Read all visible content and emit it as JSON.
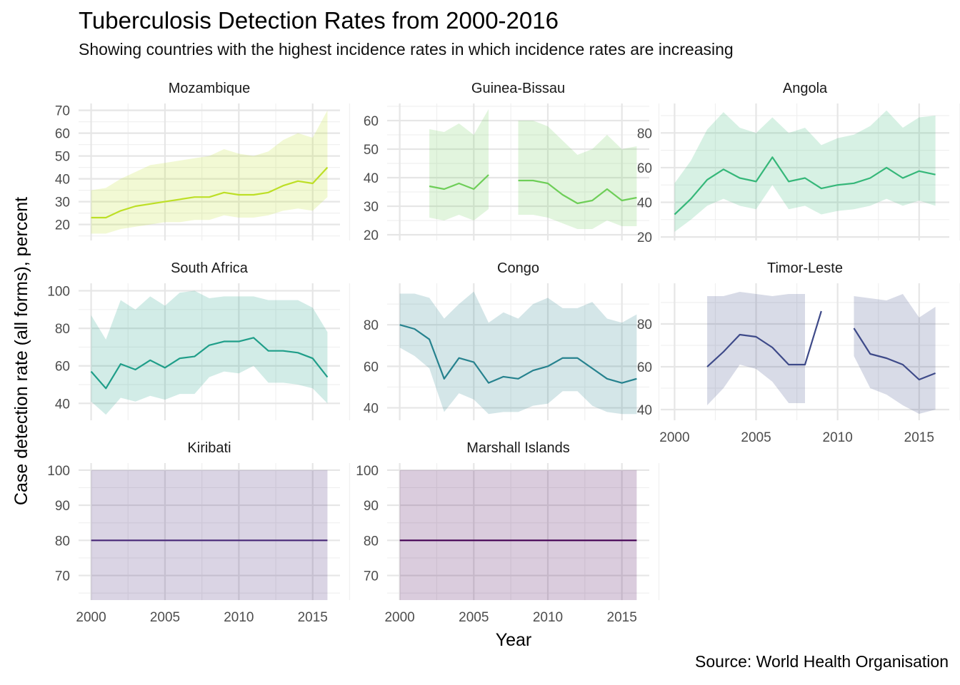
{
  "title": "Tuberculosis Detection Rates from 2000-2016",
  "subtitle": "Showing countries with the highest incidence rates in which incidence rates are increasing",
  "caption": "Source: World Health Organisation",
  "chart_data": {
    "type": "line",
    "title": "Tuberculosis Detection Rates from 2000-2016",
    "xlabel": "Year",
    "ylabel": "Case detection rate (all forms), percent",
    "x_ticks": [
      2000,
      2005,
      2010,
      2015
    ],
    "grid": true,
    "facets": [
      {
        "name": "Mozambique",
        "color": "#bddf26",
        "ylim": [
          13,
          73
        ],
        "y_ticks": [
          20,
          30,
          40,
          50,
          60,
          70
        ],
        "x": [
          2000,
          2001,
          2002,
          2003,
          2004,
          2005,
          2006,
          2007,
          2008,
          2009,
          2010,
          2011,
          2012,
          2013,
          2014,
          2015,
          2016
        ],
        "values": [
          23,
          23,
          26,
          28,
          29,
          30,
          31,
          32,
          32,
          34,
          33,
          33,
          34,
          37,
          39,
          38,
          45
        ],
        "lower": [
          16,
          16,
          18,
          19,
          20,
          21,
          21,
          22,
          22,
          24,
          23,
          23,
          24,
          26,
          27,
          26,
          32
        ],
        "upper": [
          35,
          36,
          40,
          43,
          46,
          47,
          48,
          49,
          50,
          53,
          51,
          50,
          52,
          57,
          60,
          58,
          70
        ]
      },
      {
        "name": "Guinea-Bissau",
        "color": "#6ece58",
        "ylim": [
          18,
          66
        ],
        "y_ticks": [
          20,
          30,
          40,
          50,
          60
        ],
        "x": [
          2000,
          2001,
          2002,
          2003,
          2004,
          2005,
          2006,
          2007,
          2008,
          2009,
          2010,
          2011,
          2012,
          2013,
          2014,
          2015,
          2016
        ],
        "values": [
          null,
          null,
          37,
          36,
          38,
          36,
          41,
          null,
          39,
          39,
          38,
          34,
          31,
          32,
          36,
          32,
          33
        ],
        "lower": [
          null,
          null,
          26,
          25,
          27,
          25,
          29,
          null,
          27,
          27,
          26,
          24,
          22,
          22,
          25,
          23,
          23
        ],
        "upper": [
          null,
          null,
          57,
          56,
          59,
          55,
          64,
          null,
          60,
          60,
          58,
          53,
          48,
          50,
          55,
          50,
          51
        ]
      },
      {
        "name": "Angola",
        "color": "#35b779",
        "ylim": [
          18,
          97
        ],
        "y_ticks": [
          20,
          40,
          60,
          80
        ],
        "x": [
          2000,
          2001,
          2002,
          2003,
          2004,
          2005,
          2006,
          2007,
          2008,
          2009,
          2010,
          2011,
          2012,
          2013,
          2014,
          2015,
          2016
        ],
        "values": [
          33,
          42,
          53,
          59,
          54,
          52,
          66,
          52,
          54,
          48,
          50,
          51,
          54,
          60,
          54,
          58,
          56
        ],
        "lower": [
          23,
          30,
          38,
          42,
          38,
          36,
          50,
          36,
          38,
          33,
          35,
          36,
          38,
          42,
          38,
          41,
          38
        ],
        "upper": [
          51,
          64,
          82,
          92,
          83,
          80,
          89,
          80,
          83,
          73,
          77,
          79,
          84,
          93,
          83,
          89,
          90
        ]
      },
      {
        "name": "South Africa",
        "color": "#1f9e89",
        "ylim": [
          31,
          104
        ],
        "y_ticks": [
          40,
          60,
          80,
          100
        ],
        "x": [
          2000,
          2001,
          2002,
          2003,
          2004,
          2005,
          2006,
          2007,
          2008,
          2009,
          2010,
          2011,
          2012,
          2013,
          2014,
          2015,
          2016
        ],
        "values": [
          57,
          48,
          61,
          58,
          63,
          59,
          64,
          65,
          71,
          73,
          73,
          75,
          68,
          68,
          67,
          64,
          54
        ],
        "lower": [
          41,
          34,
          43,
          41,
          44,
          42,
          45,
          45,
          54,
          57,
          56,
          60,
          51,
          51,
          50,
          48,
          40
        ],
        "upper": [
          87,
          74,
          95,
          90,
          97,
          92,
          99,
          100,
          96,
          97,
          97,
          97,
          95,
          95,
          95,
          91,
          78
        ]
      },
      {
        "name": "Congo",
        "color": "#26828e",
        "ylim": [
          34,
          100
        ],
        "y_ticks": [
          40,
          60,
          80
        ],
        "x": [
          2000,
          2001,
          2002,
          2003,
          2004,
          2005,
          2006,
          2007,
          2008,
          2009,
          2010,
          2011,
          2012,
          2013,
          2014,
          2015,
          2016
        ],
        "values": [
          80,
          78,
          73,
          54,
          64,
          62,
          52,
          55,
          54,
          58,
          60,
          64,
          64,
          59,
          54,
          52,
          54
        ],
        "lower": [
          69,
          65,
          59,
          38,
          47,
          44,
          37,
          38,
          38,
          41,
          42,
          48,
          48,
          41,
          38,
          37,
          37
        ],
        "upper": [
          95,
          95,
          93,
          83,
          90,
          96,
          81,
          86,
          83,
          90,
          93,
          88,
          88,
          91,
          83,
          81,
          85
        ]
      },
      {
        "name": "Timor-Leste",
        "color": "#3e4a89",
        "ylim": [
          35,
          99
        ],
        "y_ticks": [
          40,
          60,
          80
        ],
        "x": [
          2000,
          2001,
          2002,
          2003,
          2004,
          2005,
          2006,
          2007,
          2008,
          2009,
          2010,
          2011,
          2012,
          2013,
          2014,
          2015,
          2016
        ],
        "values": [
          null,
          null,
          60,
          67,
          75,
          74,
          69,
          61,
          61,
          86,
          null,
          78,
          66,
          64,
          61,
          54,
          57
        ],
        "lower": [
          null,
          null,
          42,
          50,
          61,
          59,
          53,
          43,
          43,
          null,
          null,
          65,
          50,
          47,
          42,
          38,
          40
        ],
        "upper": [
          null,
          null,
          93,
          93,
          95,
          94,
          93,
          94,
          94,
          95,
          null,
          93,
          92,
          91,
          94,
          83,
          88
        ]
      },
      {
        "name": "Kiribati",
        "color": "#482878",
        "ylim": [
          63,
          102
        ],
        "y_ticks": [
          70,
          80,
          90,
          100
        ],
        "x": [
          2000,
          2016
        ],
        "values": [
          80,
          80
        ],
        "lower": [
          63,
          63
        ],
        "upper": [
          100,
          100
        ]
      },
      {
        "name": "Marshall Islands",
        "color": "#440154",
        "ylim": [
          63,
          102
        ],
        "y_ticks": [
          70,
          80,
          90,
          100
        ],
        "x": [
          2000,
          2016
        ],
        "values": [
          80,
          80
        ],
        "lower": [
          63,
          63
        ],
        "upper": [
          100,
          100
        ]
      }
    ]
  }
}
